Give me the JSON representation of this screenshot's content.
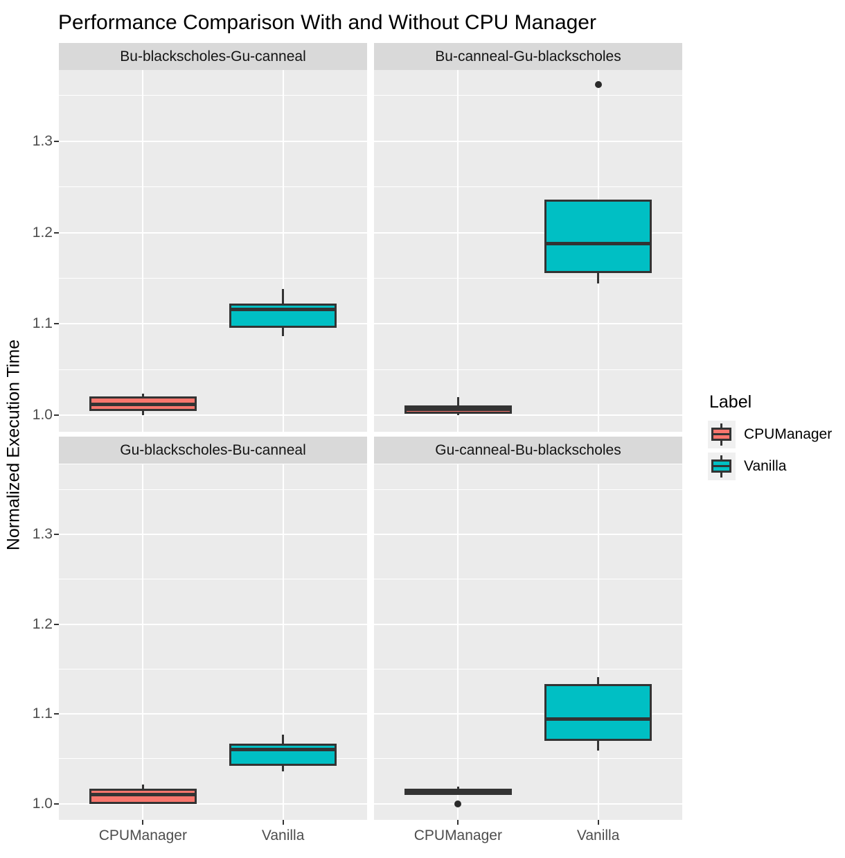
{
  "title": "Performance Comparison With and Without CPU Manager",
  "y_axis_title": "Normalized Execution Time",
  "legend": {
    "title": "Label",
    "items": [
      {
        "label": "CPUManager",
        "color": "#F8766D"
      },
      {
        "label": "Vanilla",
        "color": "#00BFC4"
      }
    ]
  },
  "chart_data": {
    "type": "boxplot",
    "title": "Performance Comparison With and Without CPU Manager",
    "xlabel": "",
    "ylabel": "Normalized Execution Time",
    "categories": [
      "CPUManager",
      "Vanilla"
    ],
    "yticks": [
      1.0,
      1.1,
      1.2,
      1.3
    ],
    "ytick_labels": [
      "1.0",
      "1.1",
      "1.2",
      "1.3"
    ],
    "yticks_minor": [
      1.05,
      1.15,
      1.25,
      1.35
    ],
    "ylim": [
      0.982,
      1.378
    ],
    "grid": true,
    "legend_position": "right",
    "facets": [
      {
        "label": "Bu-blackscholes-Gu-canneal",
        "boxes": [
          {
            "group": "CPUManager",
            "min": 1.0,
            "q1": 1.005,
            "median": 1.012,
            "q3": 1.021,
            "max": 1.024,
            "outliers": []
          },
          {
            "group": "Vanilla",
            "min": 1.087,
            "q1": 1.096,
            "median": 1.116,
            "q3": 1.122,
            "max": 1.138,
            "outliers": []
          }
        ]
      },
      {
        "label": "Bu-canneal-Gu-blackscholes",
        "boxes": [
          {
            "group": "CPUManager",
            "min": 1.0,
            "q1": 1.002,
            "median": 1.007,
            "q3": 1.011,
            "max": 1.02,
            "outliers": []
          },
          {
            "group": "Vanilla",
            "min": 1.144,
            "q1": 1.156,
            "median": 1.188,
            "q3": 1.236,
            "max": 1.236,
            "outliers": [
              1.362
            ]
          }
        ]
      },
      {
        "label": "Gu-blackscholes-Bu-canneal",
        "boxes": [
          {
            "group": "CPUManager",
            "min": 1.0,
            "q1": 1.0,
            "median": 1.01,
            "q3": 1.017,
            "max": 1.021,
            "outliers": []
          },
          {
            "group": "Vanilla",
            "min": 1.036,
            "q1": 1.042,
            "median": 1.06,
            "q3": 1.067,
            "max": 1.077,
            "outliers": []
          }
        ]
      },
      {
        "label": "Gu-canneal-Bu-blackscholes",
        "boxes": [
          {
            "group": "CPUManager",
            "min": 1.01,
            "q1": 1.01,
            "median": 1.013,
            "q3": 1.017,
            "max": 1.019,
            "outliers": [
              1.0
            ]
          },
          {
            "group": "Vanilla",
            "min": 1.059,
            "q1": 1.07,
            "median": 1.094,
            "q3": 1.133,
            "max": 1.141,
            "outliers": []
          }
        ]
      }
    ],
    "style": {
      "panel_background": "#EBEBEB",
      "strip_background": "#D9D9D9",
      "grid_color": "#FFFFFF",
      "box_outline": "#333333",
      "tick_label_color": "#4D4D4D",
      "fill_cpumanager": "#F8766D",
      "fill_vanilla": "#00BFC4"
    }
  }
}
